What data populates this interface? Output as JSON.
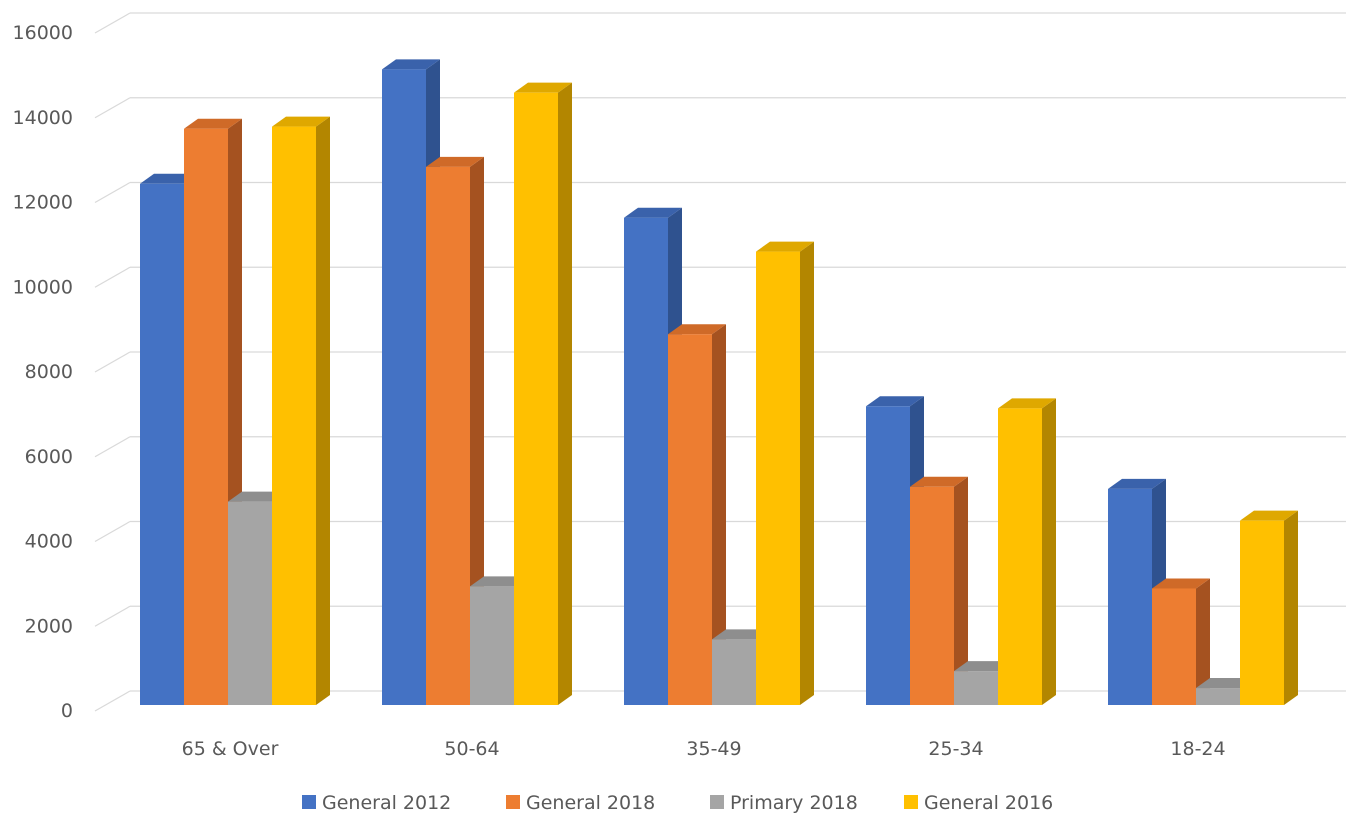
{
  "chart_data": {
    "type": "bar",
    "title": "",
    "xlabel": "",
    "ylabel": "",
    "categories": [
      "65 & Over",
      "50-64",
      "35-49",
      "25-34",
      "18-24"
    ],
    "series": [
      {
        "name": "General 2012",
        "values": [
          12300,
          15000,
          11500,
          7050,
          5100
        ]
      },
      {
        "name": "General 2018",
        "values": [
          13600,
          12700,
          8750,
          5150,
          2750
        ]
      },
      {
        "name": "Primary 2018",
        "values": [
          4800,
          2800,
          1550,
          800,
          400
        ]
      },
      {
        "name": "General 2016",
        "values": [
          13650,
          14450,
          10700,
          7000,
          4350
        ]
      }
    ],
    "ylim": [
      0,
      16000
    ],
    "yticks": [
      "0",
      "2000",
      "4000",
      "6000",
      "8000",
      "10000",
      "12000",
      "14000",
      "16000"
    ],
    "grid": true,
    "legend_position": "bottom",
    "style": "3d-clustered-column"
  },
  "colors": {
    "series_front": [
      "#4472C4",
      "#ED7D31",
      "#A5A5A5",
      "#FFC000"
    ],
    "series_side": [
      "#2F528F",
      "#A55220",
      "#767676",
      "#B38600"
    ],
    "series_top": [
      "#3A62AB",
      "#CF6A28",
      "#8E8E8E",
      "#DFA800"
    ],
    "grid": "#D9D9D9",
    "text": "#595959"
  }
}
